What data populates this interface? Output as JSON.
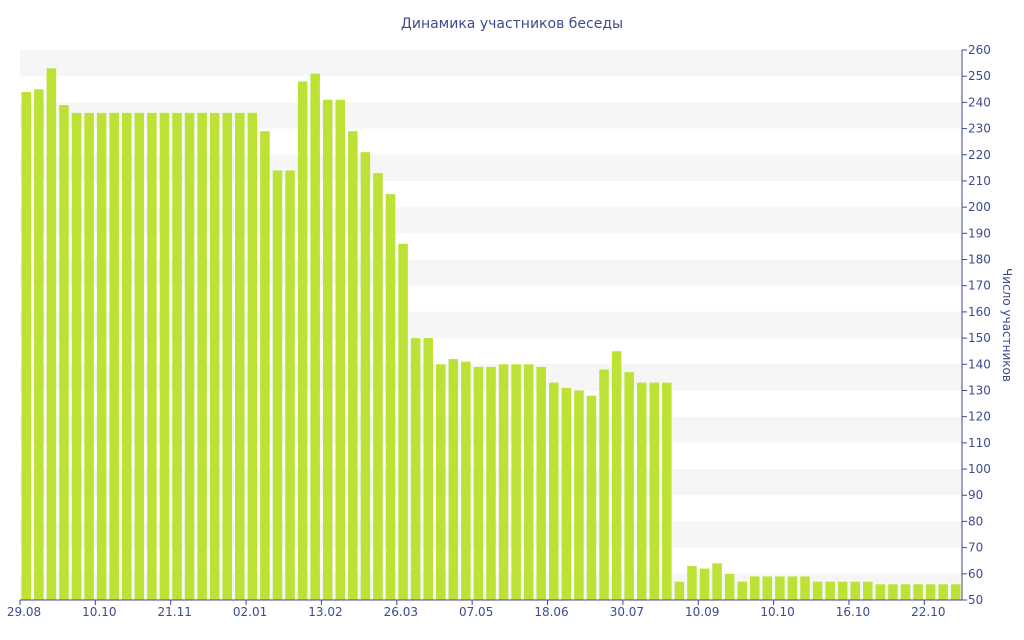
{
  "chart_data": {
    "type": "bar",
    "title": "Динамика участников беседы",
    "xlabel": "",
    "ylabel": "Число участников",
    "ylim": [
      50,
      260
    ],
    "y_ticks": [
      50,
      60,
      70,
      80,
      90,
      100,
      110,
      120,
      130,
      140,
      150,
      160,
      170,
      180,
      190,
      200,
      210,
      220,
      230,
      240,
      250,
      260
    ],
    "y_axis_position": "right",
    "grid": "alternating horizontal bands",
    "bar_color": "#bde236",
    "band_color": "#f6f6f6",
    "axis_color": "#3d4a8f",
    "x_tick_labels": [
      {
        "index": 0,
        "label": "29.08"
      },
      {
        "index": 6,
        "label": "10.10"
      },
      {
        "index": 12,
        "label": "21.11"
      },
      {
        "index": 18,
        "label": "02.01"
      },
      {
        "index": 24,
        "label": "13.02"
      },
      {
        "index": 30,
        "label": "26.03"
      },
      {
        "index": 36,
        "label": "07.05"
      },
      {
        "index": 42,
        "label": "18.06"
      },
      {
        "index": 48,
        "label": "30.07"
      },
      {
        "index": 54,
        "label": "10.09"
      },
      {
        "index": 60,
        "label": "10.10"
      },
      {
        "index": 66,
        "label": "16.10"
      },
      {
        "index": 72,
        "label": "22.10"
      }
    ],
    "values": [
      244,
      245,
      253,
      239,
      236,
      236,
      236,
      236,
      236,
      236,
      236,
      236,
      236,
      236,
      236,
      236,
      236,
      236,
      236,
      229,
      214,
      214,
      248,
      251,
      241,
      241,
      229,
      221,
      213,
      205,
      186,
      150,
      150,
      140,
      142,
      141,
      139,
      139,
      140,
      140,
      140,
      139,
      133,
      131,
      130,
      128,
      138,
      145,
      137,
      133,
      133,
      133,
      57,
      63,
      62,
      64,
      60,
      57,
      59,
      59,
      59,
      59,
      59,
      57,
      57,
      57,
      57,
      57,
      56,
      56,
      56,
      56,
      56,
      56,
      56
    ]
  }
}
